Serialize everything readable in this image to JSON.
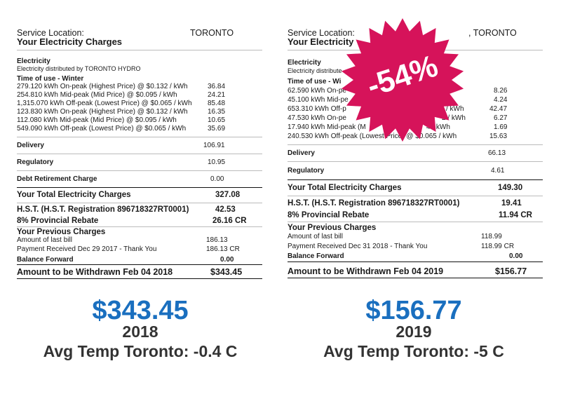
{
  "left": {
    "service_label": "Service Location:",
    "city": "TORONTO",
    "title": "Your Electricity Charges",
    "electricity": "Electricity",
    "distributed_by": "Electricity distributed by TORONTO HYDRO",
    "tou_heading": "Time of use - Winter",
    "usage": [
      {
        "desc": "279.120 kWh On-peak (Highest Price) @ $0.132 / kWh",
        "amt": "36.84"
      },
      {
        "desc": "254.810 kWh Mid-peak (Mid Price) @ $0.095 / kWh",
        "amt": "24.21"
      },
      {
        "desc": "1,315.070 kWh Off-peak (Lowest Price) @ $0.065 / kWh",
        "amt": "85.48"
      },
      {
        "desc": "123.830 kWh On-peak (Highest Price) @ $0.132 / kWh",
        "amt": "16.35"
      },
      {
        "desc": "112.080 kWh Mid-peak (Mid Price) @ $0.095 / kWh",
        "amt": "10.65"
      },
      {
        "desc": "549.090 kWh Off-peak (Lowest Price) @ $0.065 / kWh",
        "amt": "35.69"
      }
    ],
    "delivery_label": "Delivery",
    "delivery": "106.91",
    "regulatory_label": "Regulatory",
    "regulatory": "10.95",
    "debt_label": "Debt Retirement Charge",
    "debt": "0.00",
    "total_label": "Your Total Electricity Charges",
    "total": "327.08",
    "hst_label": "H.S.T. (H.S.T. Registration 896718327RT0001)",
    "hst": "42.53",
    "rebate_label": "8% Provincial Rebate",
    "rebate": "26.16 CR",
    "prev_label": "Your Previous Charges",
    "last_bill_label": "Amount of last bill",
    "last_bill": "186.13",
    "payment_label": "Payment Received Dec 29 2017 - Thank You",
    "payment": "186.13 CR",
    "balance_label": "Balance Forward",
    "balance": "0.00",
    "withdraw_label": "Amount to be Withdrawn Feb 04 2018",
    "withdraw": "$343.45",
    "amount": "$343.45",
    "year": "2018",
    "temp": "Avg Temp Toronto: -0.4 C"
  },
  "right": {
    "service_label": "Service Location:",
    "city": ", TORONTO",
    "title": "Your Electricity",
    "electricity": "Electricity",
    "distributed_by": "Electricity distribute",
    "tou_heading": "Time of use - Wi",
    "usage": [
      {
        "desc": "62.590 kWh On-pe",
        "tail": "h",
        "amt": "8.26"
      },
      {
        "desc": "45.100 kWh Mid-pe",
        "tail": "",
        "amt": "4.24"
      },
      {
        "desc": "653.310 kWh Off-p",
        "tail": "/ kWh",
        "amt": "42.47"
      },
      {
        "desc": "47.530 kWh On-pe",
        "tail": "2 / kWh",
        "amt": "6.27"
      },
      {
        "desc": "17.940 kWh Mid-peak (M",
        "tail": "4 / kWh",
        "amt": "1.69"
      },
      {
        "desc": "240.530 kWh Off-peak (Lowest Price) @ $0.065 / kWh",
        "tail": "",
        "amt": "15.63"
      }
    ],
    "delivery_label": "Delivery",
    "delivery": "66.13",
    "regulatory_label": "Regulatory",
    "regulatory": "4.61",
    "total_label": "Your Total Electricity Charges",
    "total": "149.30",
    "hst_label": "H.S.T. (H.S.T. Registration 896718327RT0001)",
    "hst": "19.41",
    "rebate_label": "8% Provincial Rebate",
    "rebate": "11.94 CR",
    "prev_label": "Your Previous Charges",
    "last_bill_label": "Amount of last bill",
    "last_bill": "118.99",
    "payment_label": "Payment Received Dec 31 2018 - Thank You",
    "payment": "118.99 CR",
    "balance_label": "Balance Forward",
    "balance": "0.00",
    "withdraw_label": "Amount to be Withdrawn Feb 04 2019",
    "withdraw": "$156.77",
    "amount": "$156.77",
    "year": "2019",
    "temp": "Avg Temp Toronto: -5 C"
  },
  "badge": {
    "text": "-54%",
    "color": "#d6135a"
  },
  "colors": {
    "amount_blue": "#1a6fbf"
  }
}
